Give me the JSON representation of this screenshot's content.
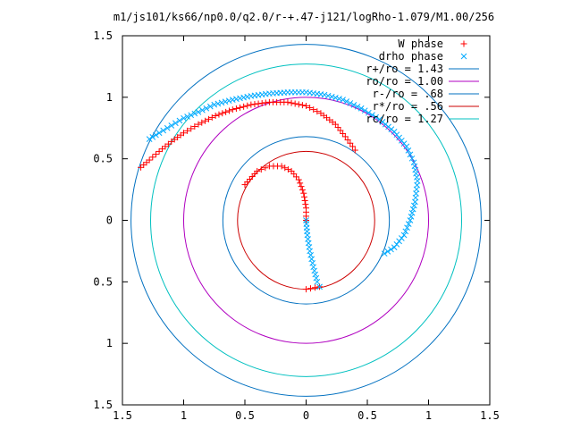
{
  "chart_data": {
    "type": "scatter",
    "title": "m1/js101/ks66/np0.0/q2.0/r-+.47-j121/logRho-1.079/M1.00/256",
    "xlabel": "",
    "ylabel": "",
    "xlim": [
      -1.5,
      1.5
    ],
    "ylim": [
      -1.5,
      1.5
    ],
    "x_tick_labels": [
      "1.5",
      "1",
      "0.5",
      "0",
      "0.5",
      "1",
      "1.5"
    ],
    "y_tick_labels": [
      "1.5",
      "1",
      "0.5",
      "0",
      "0.5",
      "1",
      "1.5"
    ],
    "grid": false,
    "legend_position": "top-right",
    "series": [
      {
        "name": "W phase",
        "marker": "+",
        "color": "#ff0000",
        "points": [
          [
            -1.35,
            0.43
          ],
          [
            -1.28,
            0.49
          ],
          [
            -1.2,
            0.56
          ],
          [
            -1.1,
            0.64
          ],
          [
            -1.0,
            0.71
          ],
          [
            -0.88,
            0.78
          ],
          [
            -0.74,
            0.85
          ],
          [
            -0.6,
            0.9
          ],
          [
            -0.45,
            0.94
          ],
          [
            -0.3,
            0.96
          ],
          [
            -0.15,
            0.96
          ],
          [
            0.0,
            0.93
          ],
          [
            0.12,
            0.87
          ],
          [
            0.24,
            0.78
          ],
          [
            0.32,
            0.68
          ],
          [
            0.38,
            0.6
          ],
          [
            0.4,
            0.57
          ],
          [
            -0.5,
            0.29
          ],
          [
            -0.4,
            0.4
          ],
          [
            -0.3,
            0.44
          ],
          [
            -0.2,
            0.44
          ],
          [
            -0.12,
            0.4
          ],
          [
            -0.06,
            0.33
          ],
          [
            -0.02,
            0.22
          ],
          [
            0.0,
            0.1
          ],
          [
            0.0,
            0.0
          ],
          [
            0.0,
            -0.56
          ],
          [
            0.11,
            -0.54
          ]
        ]
      },
      {
        "name": "drho phase",
        "marker": "x",
        "color": "#00aaff",
        "points": [
          [
            -1.28,
            0.66
          ],
          [
            -1.2,
            0.71
          ],
          [
            -1.1,
            0.77
          ],
          [
            -1.0,
            0.83
          ],
          [
            -0.88,
            0.88
          ],
          [
            -0.75,
            0.94
          ],
          [
            -0.6,
            0.98
          ],
          [
            -0.45,
            1.01
          ],
          [
            -0.3,
            1.03
          ],
          [
            -0.15,
            1.04
          ],
          [
            0.0,
            1.04
          ],
          [
            0.15,
            1.02
          ],
          [
            0.3,
            0.98
          ],
          [
            0.45,
            0.91
          ],
          [
            0.6,
            0.82
          ],
          [
            0.72,
            0.72
          ],
          [
            0.82,
            0.6
          ],
          [
            0.88,
            0.47
          ],
          [
            0.91,
            0.32
          ],
          [
            0.89,
            0.15
          ],
          [
            0.85,
            0.0
          ],
          [
            0.8,
            -0.12
          ],
          [
            0.72,
            -0.22
          ],
          [
            0.64,
            -0.27
          ],
          [
            0.0,
            0.0
          ],
          [
            0.01,
            -0.12
          ],
          [
            0.03,
            -0.25
          ],
          [
            0.06,
            -0.38
          ],
          [
            0.09,
            -0.5
          ],
          [
            0.11,
            -0.54
          ]
        ]
      }
    ],
    "circles": [
      {
        "name": "r+/ro = 1.43",
        "radius": 1.43,
        "color": "#0070c0"
      },
      {
        "name": "ro/ro = 1.00",
        "radius": 1.0,
        "color": "#b000c0"
      },
      {
        "name": "r-/ro = .68",
        "radius": 0.68,
        "color": "#0070c0"
      },
      {
        "name": "r*/ro = .56",
        "radius": 0.56,
        "color": "#cc0000"
      },
      {
        "name": "rc/ro = 1.27",
        "radius": 1.27,
        "color": "#00c0c0"
      }
    ]
  }
}
